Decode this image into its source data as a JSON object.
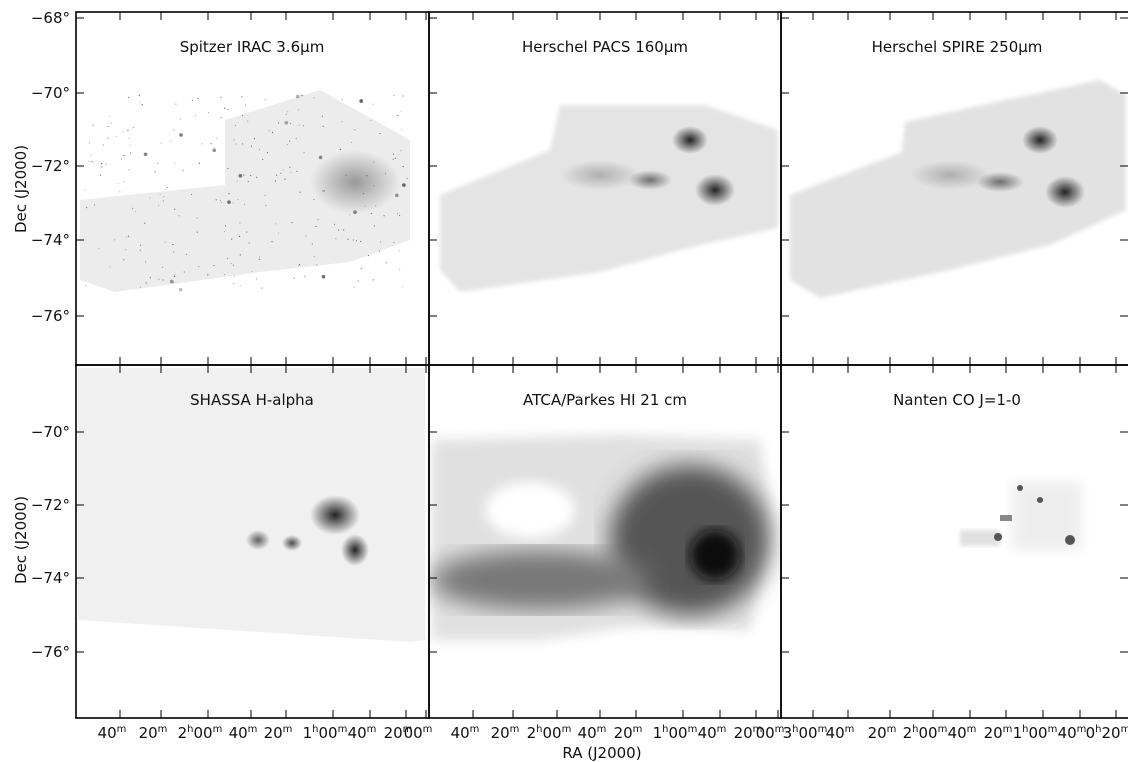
{
  "panels": [
    {
      "title": "Spitzer IRAC 3.6μm"
    },
    {
      "title": "Herschel PACS 160μm"
    },
    {
      "title": "Herschel SPIRE 250μm"
    },
    {
      "title": "SHASSA H-alpha"
    },
    {
      "title": "ATCA/Parkes HI 21 cm"
    },
    {
      "title": "Nanten CO J=1-0"
    }
  ],
  "y_axis_title": "Dec (J2000)",
  "x_axis_title": "RA (J2000)",
  "y_tick_labels": [
    [
      "−68°",
      "−70°",
      "−72°",
      "−74°",
      "−76°"
    ],
    [
      "−70°",
      "−72°",
      "−74°",
      "−76°"
    ]
  ],
  "x_tick_labels": [
    [
      [
        "40",
        "m"
      ],
      [
        "20",
        "m"
      ],
      [
        "2",
        "h",
        "00",
        "m"
      ],
      [
        "40",
        "m"
      ],
      [
        "20",
        "m"
      ],
      [
        "1",
        "h",
        "00",
        "m"
      ],
      [
        "40",
        "m"
      ],
      [
        "20",
        "m"
      ],
      [
        "00",
        "m"
      ]
    ],
    [
      [
        "40",
        "m"
      ],
      [
        "20",
        "m"
      ],
      [
        "2",
        "h",
        "00",
        "m"
      ],
      [
        "40",
        "m"
      ],
      [
        "20",
        "m"
      ],
      [
        "1",
        "h",
        "00",
        "m"
      ],
      [
        "40",
        "m"
      ],
      [
        "20",
        "m"
      ],
      [
        "00",
        "m"
      ]
    ],
    [
      [
        "3",
        "h",
        "00",
        "m"
      ],
      [
        "40",
        "m"
      ],
      [
        "20",
        "m"
      ],
      [
        "2",
        "h",
        "00",
        "m"
      ],
      [
        "40",
        "m"
      ],
      [
        "20",
        "m"
      ],
      [
        "1",
        "h",
        "00",
        "m"
      ],
      [
        "40",
        "m"
      ],
      [
        "0",
        "h",
        "20",
        "m"
      ]
    ]
  ]
}
